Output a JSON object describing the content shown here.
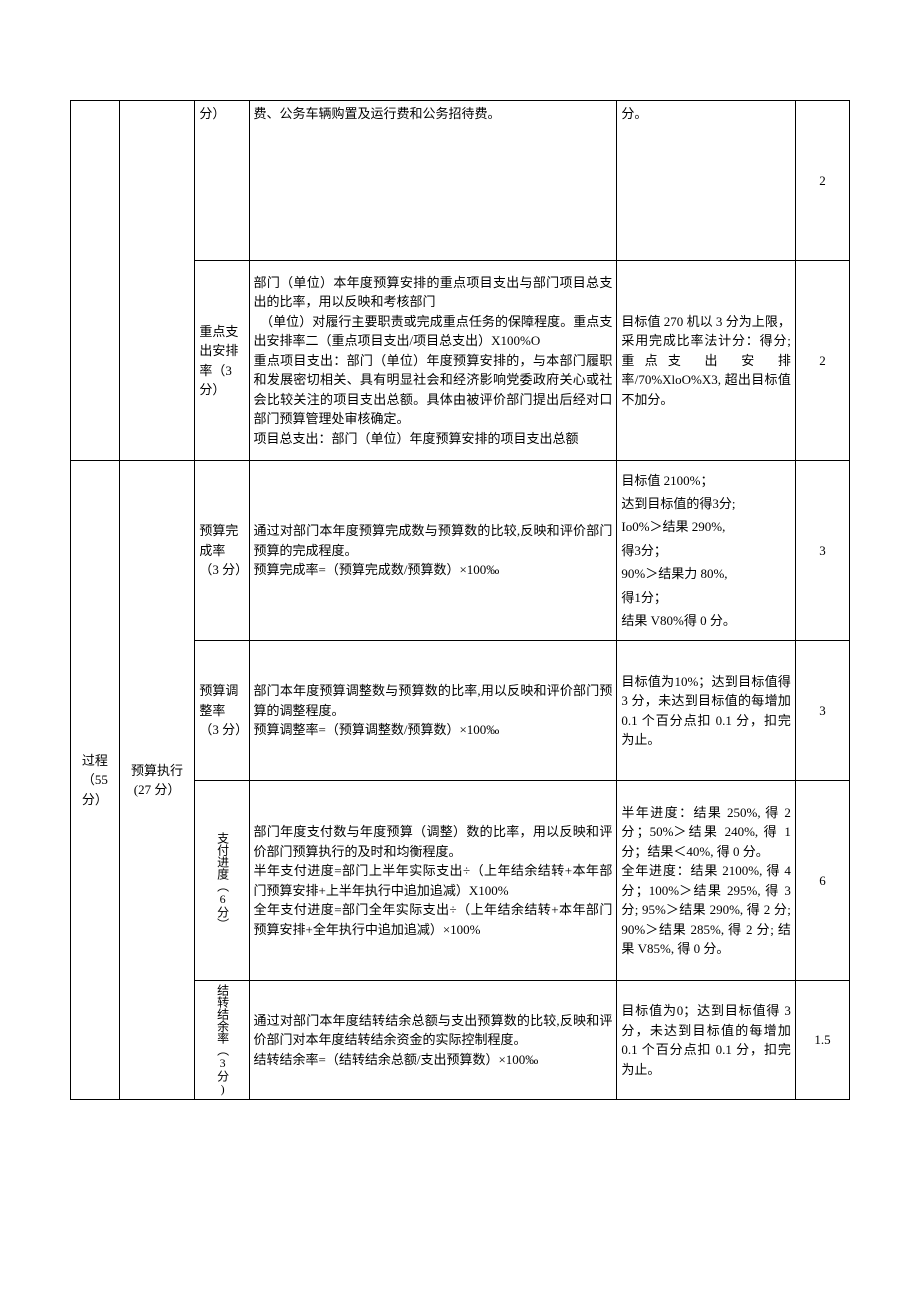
{
  "rows": [
    {
      "c3": "分）",
      "c4": "费、公务车辆购置及运行费和公务招待费。",
      "c5": "分。",
      "c6": "2"
    },
    {
      "c3": "重点支出安排率（3分）",
      "c4": "部门（单位）本年度预算安排的重点项目支出与部门项目总支出的比率，用以反映和考核部门\n　（单位）对履行主要职责或完成重点任务的保障程度。重点支出安排率二（重点项目支出/项目总支出）X100%O\n重点项目支出：部门（单位）年度预算安排的，与本部门履职和发展密切相关、具有明显社会和经济影响党委政府关心或社会比较关注的项目支出总额。具体由被评价部门提出后经对口部门预算管理处审核确定。\n项目总支出：部门（单位）年度预算安排的项目支出总额",
      "c5": "目标值 270 机以 3 分为上限，采用完成比率法计分：得分;重点支 出 安 排 率/70%XloO%X3, 超出目标值不加分。",
      "c6": "2"
    },
    {
      "c1": "过程（55分）",
      "c2": "预算执行 (27 分）",
      "c3": "预算完成率（3 分）",
      "c4": "通过对部门本年度预算完成数与预算数的比较,反映和评价部门预算的完成程度。\n预算完成率=（预算完成数/预算数）×100‰",
      "c5": "目标值 2100%；\n达到目标值的得3分;\nIo0%＞结果 290%,\n得3分；\n90%＞结果力 80%,\n得1分；\n结果 V80%得 0 分。",
      "c6": "3"
    },
    {
      "c3": "预算调整率（3 分）",
      "c4": "部门本年度预算调整数与预算数的比率,用以反映和评价部门预算的调整程度。\n预算调整率=（预算调整数/预算数）×100‰",
      "c5": "目标值为10%；达到目标值得 3 分，未达到目标值的每增加 0.1 个百分点扣 0.1 分，扣完为止。",
      "c6": "3"
    },
    {
      "c3": "支付进度（6分）",
      "c4": "部门年度支付数与年度预算（调整）数的比率，用以反映和评价部门预算执行的及时和均衡程度。\n半年支付进度=部门上半年实际支出÷（上年结余结转+本年部门预算安排+上半年执行中追加追减）X100%\n全年支付进度=部门全年实际支出÷（上年结余结转+本年部门预算安排+全年执行中追加追减）×100%",
      "c5": "半年进度：结果 250%, 得 2 分；50%＞结果 240%, 得 1 分；结果＜40%, 得 0 分。\n全年进度：结果 2100%, 得 4 分；100%＞结果 295%, 得 3 分; 95%＞结果 290%, 得 2 分; 90%＞结果 285%, 得 2 分; 结果 V85%, 得 0 分。",
      "c6": "6"
    },
    {
      "c3": "结转结余率（3分)",
      "c4": "通过对部门本年度结转结余总额与支出预算数的比较,反映和评价部门对本年度结转结余资金的实际控制程度。\n结转结余率=（结转结余总额/支出预算数）×100‰",
      "c5": "目标值为0；达到目标值得 3 分，未达到目标值的每增加 0.1 个百分点扣 0.1 分，扣完为止。",
      "c6": "1.5"
    }
  ]
}
